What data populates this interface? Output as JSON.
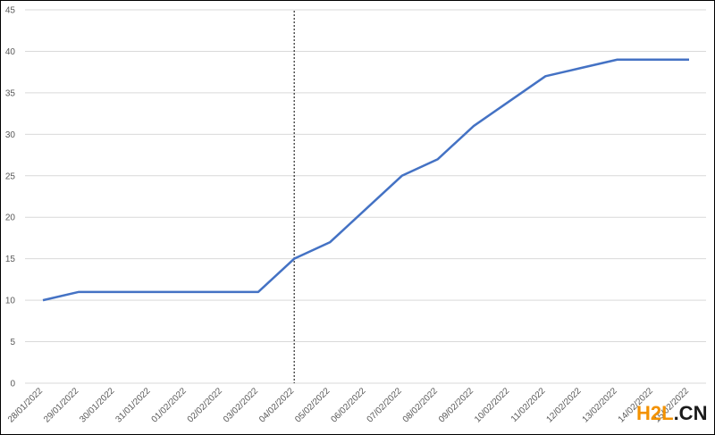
{
  "chart_data": {
    "type": "line",
    "categories": [
      "28/01/2022",
      "29/01/2022",
      "30/01/2022",
      "31/01/2022",
      "01/02/2022",
      "02/02/2022",
      "03/02/2022",
      "04/02/2022",
      "05/02/2022",
      "06/02/2022",
      "07/02/2022",
      "08/02/2022",
      "09/02/2022",
      "10/02/2022",
      "11/02/2022",
      "12/02/2022",
      "13/02/2022",
      "14/02/2022",
      "15/02/2022"
    ],
    "series": [
      {
        "color": "#4472c4",
        "values": [
          10,
          11,
          11,
          11,
          11,
          11,
          11,
          15,
          17,
          21,
          25,
          27,
          31,
          34,
          37,
          38,
          39,
          39,
          39
        ]
      }
    ],
    "ylim": [
      0,
      45
    ],
    "yticks": [
      0,
      5,
      10,
      15,
      20,
      25,
      30,
      35,
      40,
      45
    ],
    "grid": true,
    "marker_line_at": "04/02/2022"
  },
  "watermark": [
    "H2L",
    ".CN"
  ]
}
